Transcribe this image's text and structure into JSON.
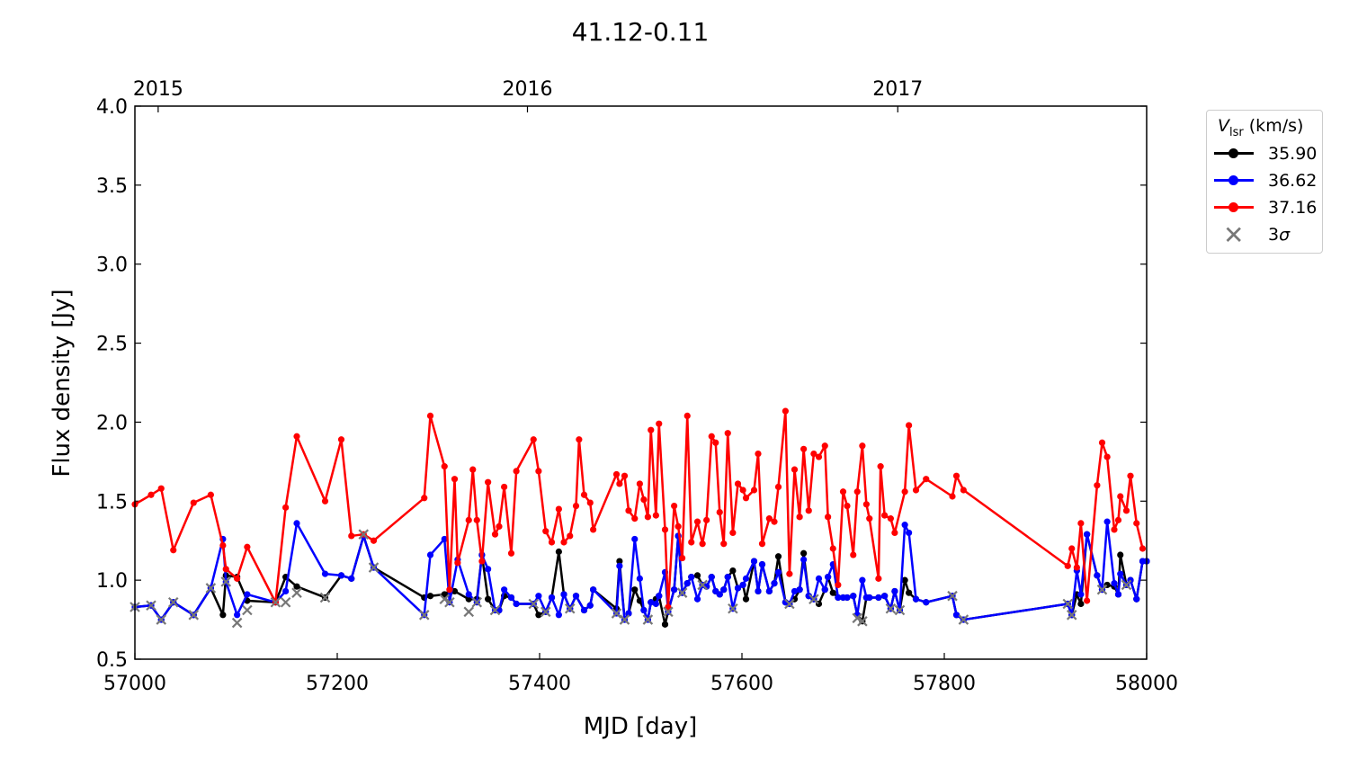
{
  "chart_data": {
    "type": "line",
    "title": "41.12-0.11",
    "xlabel": "MJD [day]",
    "ylabel": "Flux density [Jy]",
    "xlim": [
      57000,
      58000
    ],
    "ylim": [
      0.5,
      4.0
    ],
    "xticks": [
      "57000",
      "57200",
      "57400",
      "57600",
      "57800",
      "58000"
    ],
    "yticks": [
      "0.5",
      "1.0",
      "1.5",
      "2.0",
      "2.5",
      "3.0",
      "3.5",
      "4.0"
    ],
    "top_axis": [
      {
        "label": "2015",
        "mjd": 57023
      },
      {
        "label": "2016",
        "mjd": 57388
      },
      {
        "label": "2017",
        "mjd": 57754
      }
    ],
    "legend": {
      "title_main": "V",
      "title_sub": "lsr",
      "title_unit": " (km/s)",
      "placement": "outside-right",
      "sigma_label": "3 ",
      "sigma_symbol": "σ"
    },
    "series": [
      {
        "name": "35.90",
        "color": "#000000",
        "x": [
          57000,
          57016,
          57026,
          57038,
          57058,
          57075,
          57087,
          57090,
          57101,
          57111,
          57139,
          57149,
          57160,
          57188,
          57204,
          57214,
          57226,
          57236,
          57286,
          57292,
          57306,
          57311,
          57316,
          57330,
          57338,
          57343,
          57349,
          57356,
          57360,
          57365,
          57372,
          57377,
          57394,
          57399,
          57406,
          57412,
          57419,
          57424,
          57430,
          57436,
          57444,
          57450,
          57453,
          57476,
          57479,
          57484,
          57488,
          57494,
          57499,
          57503,
          57507,
          57510,
          57515,
          57518,
          57524,
          57527,
          57533,
          57537,
          57541,
          57546,
          57550,
          57556,
          57561,
          57565,
          57570,
          57574,
          57578,
          57582,
          57586,
          57591,
          57596,
          57601,
          57604,
          57612,
          57616,
          57620,
          57627,
          57632,
          57636,
          57643,
          57647,
          57652,
          57657,
          57661,
          57666,
          57671,
          57676,
          57682,
          57685,
          57690,
          57695,
          57700,
          57704,
          57710,
          57714,
          57719,
          57723,
          57726,
          57735,
          57741,
          57747,
          57751,
          57756,
          57761,
          57765,
          57772,
          57782,
          57808,
          57812,
          57819,
          57922,
          57926,
          57931,
          57935,
          57941,
          57951,
          57956,
          57961,
          57968,
          57972,
          57974,
          57980,
          57984,
          57990,
          57996,
          58000
        ],
        "y": [
          0.83,
          0.84,
          0.75,
          0.86,
          0.78,
          0.95,
          0.78,
          1.03,
          1.02,
          0.87,
          0.86,
          1.02,
          0.96,
          0.89,
          1.03,
          1.01,
          1.28,
          1.08,
          0.89,
          0.9,
          0.91,
          0.92,
          0.93,
          0.88,
          0.88,
          1.16,
          0.88,
          0.81,
          0.81,
          0.9,
          0.89,
          0.85,
          0.85,
          0.78,
          0.8,
          0.89,
          1.18,
          0.91,
          0.82,
          0.9,
          0.81,
          0.84,
          0.94,
          0.82,
          1.12,
          0.75,
          0.79,
          0.94,
          0.87,
          0.81,
          0.75,
          0.86,
          0.88,
          0.9,
          0.72,
          0.8,
          0.94,
          1.28,
          0.92,
          0.98,
          1.02,
          1.03,
          0.97,
          0.96,
          1.02,
          0.93,
          0.91,
          0.94,
          1.02,
          1.06,
          0.95,
          0.97,
          0.88,
          1.12,
          0.93,
          1.1,
          0.93,
          0.98,
          1.15,
          0.86,
          0.85,
          0.88,
          0.94,
          1.17,
          0.9,
          0.88,
          0.85,
          0.94,
          1.02,
          0.92,
          0.89,
          0.89,
          0.89,
          0.9,
          0.78,
          0.74,
          0.89,
          0.89,
          0.89,
          0.9,
          0.82,
          0.93,
          0.81,
          1.0,
          0.92,
          0.88,
          0.86,
          0.9,
          0.78,
          0.75,
          0.85,
          0.78,
          0.91,
          0.85,
          1.29,
          1.03,
          0.94,
          0.97,
          0.96,
          0.91,
          1.16,
          0.97,
          1.0,
          0.88,
          1.12,
          1.12
        ]
      },
      {
        "name": "36.62",
        "color": "#0000ff",
        "x": [
          57000,
          57016,
          57026,
          57038,
          57058,
          57075,
          57087,
          57090,
          57101,
          57111,
          57139,
          57149,
          57160,
          57188,
          57204,
          57214,
          57226,
          57236,
          57286,
          57292,
          57306,
          57311,
          57319,
          57330,
          57338,
          57343,
          57349,
          57356,
          57360,
          57365,
          57372,
          57377,
          57394,
          57399,
          57406,
          57412,
          57419,
          57424,
          57430,
          57436,
          57444,
          57450,
          57453,
          57476,
          57479,
          57484,
          57488,
          57494,
          57499,
          57503,
          57507,
          57510,
          57515,
          57518,
          57524,
          57527,
          57533,
          57537,
          57541,
          57546,
          57550,
          57556,
          57561,
          57565,
          57570,
          57574,
          57578,
          57582,
          57586,
          57591,
          57596,
          57601,
          57604,
          57612,
          57616,
          57620,
          57627,
          57632,
          57636,
          57643,
          57647,
          57652,
          57657,
          57661,
          57666,
          57671,
          57676,
          57682,
          57685,
          57690,
          57695,
          57700,
          57704,
          57710,
          57714,
          57719,
          57723,
          57726,
          57735,
          57741,
          57747,
          57751,
          57756,
          57761,
          57765,
          57772,
          57782,
          57808,
          57812,
          57819,
          57922,
          57926,
          57931,
          57935,
          57941,
          57951,
          57956,
          57961,
          57968,
          57972,
          57974,
          57980,
          57984,
          57990,
          57996,
          58000
        ],
        "y": [
          0.83,
          0.84,
          0.75,
          0.86,
          0.78,
          0.95,
          1.26,
          0.99,
          0.78,
          0.91,
          0.86,
          0.93,
          1.36,
          1.04,
          1.03,
          1.01,
          1.28,
          1.08,
          0.78,
          1.16,
          1.26,
          0.86,
          1.13,
          0.91,
          0.86,
          1.16,
          1.07,
          0.81,
          0.81,
          0.94,
          0.89,
          0.85,
          0.85,
          0.9,
          0.8,
          0.89,
          0.78,
          0.91,
          0.82,
          0.9,
          0.81,
          0.84,
          0.94,
          0.79,
          1.09,
          0.75,
          0.79,
          1.26,
          1.01,
          0.81,
          0.75,
          0.86,
          0.85,
          0.9,
          1.05,
          0.8,
          0.94,
          1.28,
          0.92,
          0.98,
          1.02,
          0.88,
          0.97,
          0.96,
          1.02,
          0.93,
          0.91,
          0.94,
          1.02,
          0.82,
          0.95,
          0.97,
          1.01,
          1.12,
          0.93,
          1.1,
          0.93,
          0.98,
          1.05,
          0.86,
          0.85,
          0.93,
          0.94,
          1.13,
          0.9,
          0.88,
          1.01,
          0.94,
          1.02,
          1.1,
          0.89,
          0.89,
          0.89,
          0.9,
          0.78,
          1.0,
          0.89,
          0.89,
          0.89,
          0.9,
          0.82,
          0.93,
          0.81,
          1.35,
          1.3,
          0.88,
          0.86,
          0.9,
          0.78,
          0.75,
          0.85,
          0.78,
          1.06,
          0.91,
          1.29,
          1.03,
          0.94,
          1.37,
          0.98,
          0.91,
          1.04,
          0.97,
          1.0,
          0.88,
          1.12,
          1.12
        ]
      },
      {
        "name": "37.16",
        "color": "#ff0000",
        "x": [
          57000,
          57016,
          57026,
          57038,
          57058,
          57075,
          57087,
          57090,
          57101,
          57111,
          57139,
          57149,
          57160,
          57188,
          57204,
          57214,
          57226,
          57236,
          57286,
          57292,
          57306,
          57311,
          57316,
          57319,
          57330,
          57334,
          57338,
          57343,
          57349,
          57356,
          57360,
          57365,
          57372,
          57377,
          57394,
          57399,
          57406,
          57412,
          57419,
          57424,
          57430,
          57436,
          57439,
          57444,
          57450,
          57453,
          57476,
          57479,
          57484,
          57488,
          57494,
          57499,
          57503,
          57507,
          57510,
          57515,
          57518,
          57524,
          57527,
          57533,
          57537,
          57541,
          57546,
          57550,
          57556,
          57561,
          57565,
          57570,
          57574,
          57578,
          57582,
          57586,
          57591,
          57596,
          57601,
          57604,
          57612,
          57616,
          57620,
          57627,
          57632,
          57636,
          57643,
          57647,
          57652,
          57657,
          57661,
          57666,
          57671,
          57676,
          57682,
          57685,
          57690,
          57695,
          57700,
          57704,
          57710,
          57714,
          57719,
          57723,
          57726,
          57735,
          57737,
          57741,
          57747,
          57751,
          57761,
          57765,
          57772,
          57782,
          57808,
          57812,
          57819,
          57922,
          57926,
          57931,
          57935,
          57941,
          57951,
          57956,
          57961,
          57968,
          57972,
          57974,
          57980,
          57984,
          57990,
          57996
        ],
        "y": [
          1.48,
          1.54,
          1.58,
          1.19,
          1.49,
          1.54,
          1.22,
          1.07,
          1.01,
          1.21,
          0.86,
          1.46,
          1.91,
          1.5,
          1.89,
          1.28,
          1.29,
          1.25,
          1.52,
          2.04,
          1.72,
          0.94,
          1.64,
          1.11,
          1.38,
          1.7,
          1.38,
          1.12,
          1.62,
          1.29,
          1.34,
          1.59,
          1.17,
          1.69,
          1.89,
          1.69,
          1.31,
          1.24,
          1.45,
          1.24,
          1.28,
          1.47,
          1.89,
          1.54,
          1.49,
          1.32,
          1.67,
          1.61,
          1.66,
          1.44,
          1.39,
          1.61,
          1.51,
          1.4,
          1.95,
          1.41,
          1.99,
          1.32,
          0.83,
          1.47,
          1.34,
          1.14,
          2.04,
          1.24,
          1.37,
          1.23,
          1.38,
          1.91,
          1.87,
          1.43,
          1.23,
          1.93,
          1.3,
          1.61,
          1.57,
          1.52,
          1.57,
          1.8,
          1.23,
          1.39,
          1.37,
          1.59,
          2.07,
          1.04,
          1.7,
          1.4,
          1.83,
          1.44,
          1.8,
          1.78,
          1.85,
          1.4,
          1.2,
          0.97,
          1.56,
          1.47,
          1.16,
          1.56,
          1.85,
          1.48,
          1.39,
          1.01,
          1.72,
          1.41,
          1.39,
          1.3,
          1.56,
          1.98,
          1.57,
          1.64,
          1.53,
          1.66,
          1.57,
          1.09,
          1.2,
          1.08,
          1.36,
          0.87,
          1.6,
          1.87,
          1.78,
          1.32,
          1.38,
          1.53,
          1.44,
          1.66,
          1.36,
          1.2
        ]
      }
    ],
    "sigma3": {
      "color": "#777777",
      "x": [
        57000,
        57016,
        57026,
        57038,
        57058,
        57075,
        57090,
        57101,
        57111,
        57139,
        57149,
        57160,
        57188,
        57226,
        57236,
        57286,
        57306,
        57311,
        57330,
        57338,
        57356,
        57394,
        57406,
        57430,
        57476,
        57484,
        57507,
        57527,
        57541,
        57561,
        57591,
        57647,
        57671,
        57714,
        57719,
        57747,
        57756,
        57808,
        57819,
        57922,
        57926,
        57956,
        57980
      ],
      "y": [
        0.83,
        0.84,
        0.75,
        0.86,
        0.78,
        0.95,
        0.99,
        0.73,
        0.81,
        0.86,
        0.86,
        0.92,
        0.89,
        1.29,
        1.08,
        0.78,
        0.88,
        0.86,
        0.8,
        0.86,
        0.81,
        0.85,
        0.8,
        0.82,
        0.79,
        0.75,
        0.75,
        0.8,
        0.92,
        0.97,
        0.82,
        0.85,
        0.88,
        0.76,
        0.74,
        0.82,
        0.81,
        0.9,
        0.75,
        0.85,
        0.78,
        0.94,
        0.97
      ]
    }
  }
}
